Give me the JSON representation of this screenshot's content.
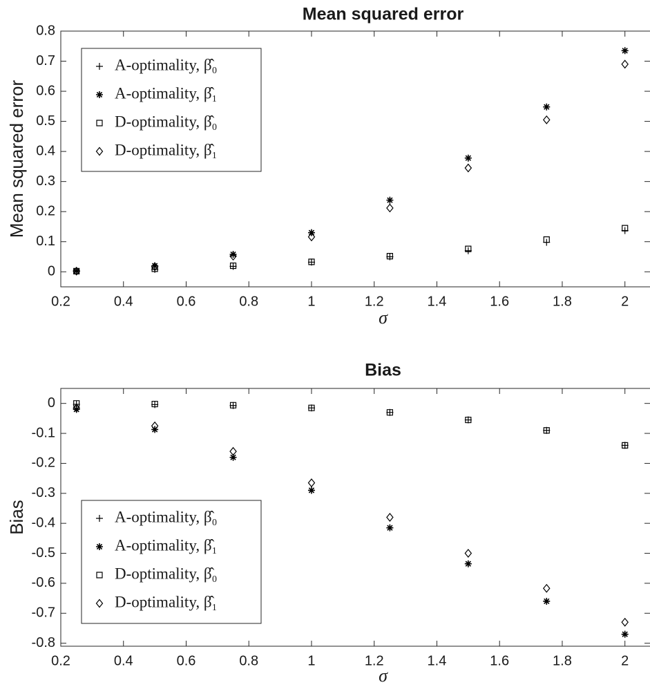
{
  "chart_data": [
    {
      "type": "scatter",
      "title": "Mean squared error",
      "x_label": "σ",
      "y_label": "Mean squared error",
      "x": [
        0.25,
        0.5,
        0.75,
        1,
        1.25,
        1.5,
        1.75,
        2
      ],
      "xlim": [
        0.2,
        2.08
      ],
      "xticks": [
        0.2,
        0.4,
        0.6,
        0.8,
        1,
        1.2,
        1.4,
        1.6,
        1.8,
        2
      ],
      "ylim": [
        -0.05,
        0.8
      ],
      "yticks": [
        0,
        0.1,
        0.2,
        0.3,
        0.4,
        0.5,
        0.6,
        0.7,
        0.8
      ],
      "legend": "upper left",
      "series": [
        {
          "name": "A-optimality, β̂₀",
          "marker": "plus",
          "color": "#000000",
          "values": [
            0.002,
            0.008,
            0.018,
            0.032,
            0.05,
            0.07,
            0.098,
            0.137
          ]
        },
        {
          "name": "A-optimality, β̂₁",
          "marker": "star",
          "color": "#000000",
          "values": [
            0.003,
            0.02,
            0.058,
            0.13,
            0.238,
            0.378,
            0.548,
            0.735
          ]
        },
        {
          "name": "D-optimality, β̂₀",
          "marker": "square",
          "color": "#000000",
          "values": [
            0.002,
            0.01,
            0.02,
            0.033,
            0.052,
            0.076,
            0.107,
            0.145
          ]
        },
        {
          "name": "D-optimality, β̂₁",
          "marker": "diamond",
          "color": "#000000",
          "values": [
            0.002,
            0.017,
            0.052,
            0.116,
            0.212,
            0.345,
            0.505,
            0.69
          ]
        }
      ]
    },
    {
      "type": "scatter",
      "title": "Bias",
      "x_label": "σ",
      "y_label": "Bias",
      "x": [
        0.25,
        0.5,
        0.75,
        1,
        1.25,
        1.5,
        1.75,
        2
      ],
      "xlim": [
        0.2,
        2.08
      ],
      "xticks": [
        0.2,
        0.4,
        0.6,
        0.8,
        1,
        1.2,
        1.4,
        1.6,
        1.8,
        2
      ],
      "ylim": [
        -0.81,
        0.05
      ],
      "yticks": [
        -0.8,
        -0.7,
        -0.6,
        -0.5,
        -0.4,
        -0.3,
        -0.2,
        -0.1,
        0
      ],
      "legend": "lower left",
      "series": [
        {
          "name": "A-optimality, β̂₀",
          "marker": "plus",
          "color": "#000000",
          "values": [
            -0.003,
            -0.004,
            -0.007,
            -0.015,
            -0.03,
            -0.055,
            -0.09,
            -0.14
          ]
        },
        {
          "name": "A-optimality, β̂₁",
          "marker": "star",
          "color": "#000000",
          "values": [
            -0.02,
            -0.087,
            -0.18,
            -0.29,
            -0.415,
            -0.535,
            -0.66,
            -0.77
          ]
        },
        {
          "name": "D-optimality, β̂₀",
          "marker": "square",
          "color": "#000000",
          "values": [
            0,
            -0.002,
            -0.006,
            -0.015,
            -0.03,
            -0.055,
            -0.09,
            -0.14
          ]
        },
        {
          "name": "D-optimality, β̂₁",
          "marker": "diamond",
          "color": "#000000",
          "values": [
            -0.015,
            -0.075,
            -0.16,
            -0.265,
            -0.38,
            -0.5,
            -0.617,
            -0.73
          ]
        }
      ]
    }
  ]
}
